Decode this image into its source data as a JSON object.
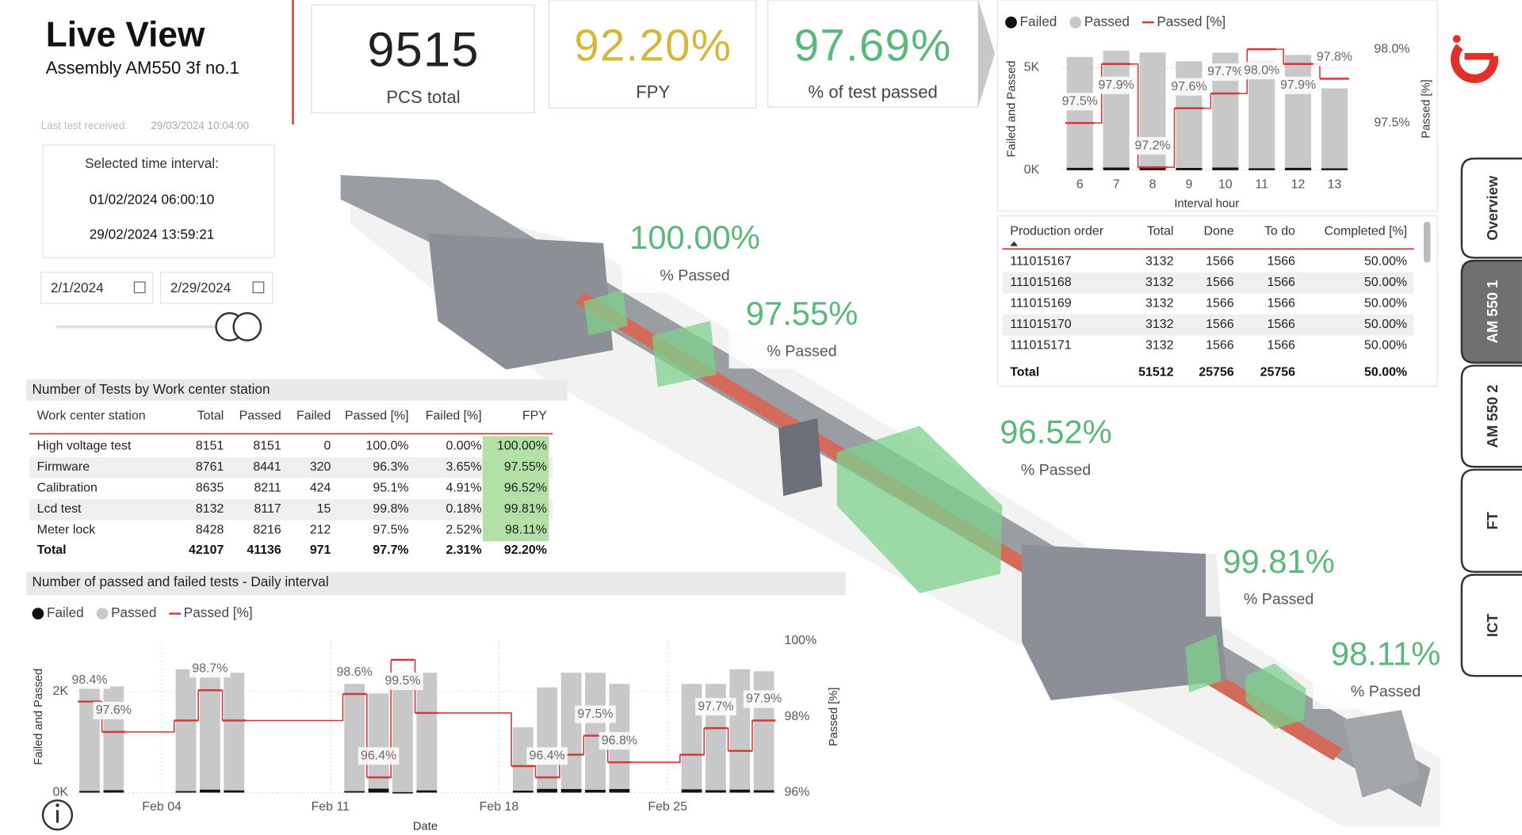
{
  "header": {
    "title": "Live View",
    "subtitle": "Assembly AM550 3f no.1"
  },
  "last_test": {
    "label": "Last test received:",
    "value": "29/03/2024 10:04:00"
  },
  "interval": {
    "label": "Selected time interval:",
    "start": "01/02/2024 06:00:10",
    "end": "29/02/2024 13:59:21"
  },
  "date_filter": {
    "from": "2/1/2024",
    "to": "2/29/2024"
  },
  "kpis": [
    {
      "value": "9515",
      "label": "PCS total",
      "color": "#222222"
    },
    {
      "value": "92.20%",
      "label": "FPY",
      "color": "#d4b83a"
    },
    {
      "value": "97.69%",
      "label": "% of test passed",
      "color": "#5cb87a"
    }
  ],
  "stations": [
    {
      "value": "100.00%",
      "label": "% Passed",
      "color": "#5cb87a"
    },
    {
      "value": "97.55%",
      "label": "% Passed",
      "color": "#5cb87a"
    },
    {
      "value": "96.52%",
      "label": "% Passed",
      "color": "#5cb87a"
    },
    {
      "value": "99.81%",
      "label": "% Passed",
      "color": "#5cb87a"
    },
    {
      "value": "98.11%",
      "label": "% Passed",
      "color": "#5cb87a"
    }
  ],
  "tables": {
    "work_center": {
      "title": "Number of Tests by Work center station",
      "columns": [
        "Work center station",
        "Total",
        "Passed",
        "Failed",
        "Passed [%]",
        "Failed [%]",
        "FPY"
      ],
      "rows": [
        [
          "High voltage test",
          8151,
          8151,
          0,
          "100.0%",
          "0.00%",
          "100.00%"
        ],
        [
          "Firmware",
          8761,
          8441,
          320,
          "96.3%",
          "3.65%",
          "97.55%"
        ],
        [
          "Calibration",
          8635,
          8211,
          424,
          "95.1%",
          "4.91%",
          "96.52%"
        ],
        [
          "Lcd test",
          8132,
          8117,
          15,
          "99.8%",
          "0.18%",
          "99.81%"
        ],
        [
          "Meter lock",
          8428,
          8216,
          212,
          "97.5%",
          "2.52%",
          "98.11%"
        ]
      ],
      "total": [
        "Total",
        42107,
        41136,
        971,
        "97.7%",
        "2.31%",
        "92.20%"
      ]
    },
    "production": {
      "columns": [
        "Production order",
        "Total",
        "Done",
        "To do",
        "Completed [%]"
      ],
      "rows": [
        [
          111015167,
          3132,
          1566,
          1566,
          "50.00%"
        ],
        [
          111015168,
          3132,
          1566,
          1566,
          "50.00%"
        ],
        [
          111015169,
          3132,
          1566,
          1566,
          "50.00%"
        ],
        [
          111015170,
          3132,
          1566,
          1566,
          "50.00%"
        ],
        [
          111015171,
          3132,
          1566,
          1566,
          "50.00%"
        ]
      ],
      "total": [
        "Total",
        51512,
        25756,
        25756,
        "50.00%"
      ]
    }
  },
  "nav": [
    {
      "label": "Overview",
      "active": false
    },
    {
      "label": "AM 550 1",
      "active": true
    },
    {
      "label": "AM 550 2",
      "active": false
    },
    {
      "label": "FT",
      "active": false
    },
    {
      "label": "ICT",
      "active": false
    }
  ],
  "chart_data": [
    {
      "type": "bar",
      "xlabel": "Interval hour",
      "ylabel": "Failed and Passed",
      "y2label": "Passed [%]",
      "legend": "top-left",
      "categories": [
        6,
        7,
        8,
        9,
        10,
        11,
        12,
        13
      ],
      "ylim": [
        0,
        6400
      ],
      "yticks": [
        {
          "value": 0,
          "label": "0K"
        },
        {
          "value": 5000,
          "label": "5K"
        }
      ],
      "y2lim": [
        97.18,
        98.07
      ],
      "y2ticks": [
        {
          "value": 97.5,
          "label": "97.5%"
        },
        {
          "value": 98,
          "label": "98.0%"
        }
      ],
      "grid": true,
      "series": [
        {
          "name": "Failed",
          "color": "#111111",
          "values": [
            120,
            130,
            140,
            110,
            130,
            100,
            120,
            90
          ]
        },
        {
          "name": "Passed",
          "color": "#c8c8c8",
          "values": [
            5400,
            5700,
            5600,
            5200,
            5600,
            5200,
            5500,
            3900
          ]
        },
        {
          "name": "Passed [%]",
          "color": "#d03a3a",
          "axis": "y2",
          "values": [
            97.5,
            97.9,
            97.2,
            97.6,
            97.7,
            98.0,
            97.9,
            97.8
          ],
          "value_labels": [
            "97.5%",
            "97.9%",
            "97.2%",
            "97.6%",
            "97.7%",
            "98.0%",
            "97.9%",
            "97.8%"
          ]
        }
      ]
    },
    {
      "type": "bar",
      "title": "Number of passed and failed tests - Daily interval",
      "xlabel": "Date",
      "ylabel": "Failed and Passed",
      "y2label": "Passed [%]",
      "legend": "top-left",
      "x": [
        "Feb 01",
        "Feb 02",
        "Feb 05",
        "Feb 06",
        "Feb 07",
        "Feb 12",
        "Feb 13",
        "Feb 14",
        "Feb 15",
        "Feb 19",
        "Feb 20",
        "Feb 21",
        "Feb 22",
        "Feb 23",
        "Feb 26",
        "Feb 27",
        "Feb 28",
        "Feb 29"
      ],
      "xticks": [
        "Feb 04",
        "Feb 11",
        "Feb 18",
        "Feb 25"
      ],
      "ylim": [
        0,
        3000
      ],
      "yticks": [
        {
          "value": 0,
          "label": "0K"
        },
        {
          "value": 2000,
          "label": "2K"
        }
      ],
      "y2lim": [
        96,
        100
      ],
      "y2ticks": [
        {
          "value": 96,
          "label": "96%"
        },
        {
          "value": 98,
          "label": "98%"
        },
        {
          "value": 100,
          "label": "100%"
        }
      ],
      "grid": true,
      "series": [
        {
          "name": "Failed",
          "color": "#111111",
          "values": [
            35,
            50,
            30,
            60,
            45,
            30,
            80,
            12,
            45,
            40,
            75,
            70,
            55,
            70,
            65,
            50,
            60,
            48
          ]
        },
        {
          "name": "Passed",
          "color": "#c8c8c8",
          "values": [
            2065,
            2050,
            2410,
            2310,
            2325,
            2120,
            1880,
            2358,
            2325,
            1250,
            2005,
            2300,
            2315,
            2080,
            2085,
            2100,
            2380,
            2352
          ]
        },
        {
          "name": "Passed [%]",
          "color": "#d03a3a",
          "axis": "y2",
          "values": [
            98.4,
            97.6,
            97.9,
            98.7,
            97.9,
            98.6,
            96.4,
            99.5,
            98.1,
            96.7,
            96.4,
            97.0,
            97.5,
            96.8,
            97.0,
            97.7,
            97.1,
            97.9
          ],
          "value_labels": [
            "98.4%",
            "97.6%",
            null,
            "98.7%",
            null,
            "98.6%",
            "96.4%",
            "99.5%",
            null,
            null,
            "96.4%",
            null,
            "97.5%",
            "96.8%",
            null,
            "97.7%",
            null,
            "97.9%"
          ]
        }
      ]
    }
  ]
}
